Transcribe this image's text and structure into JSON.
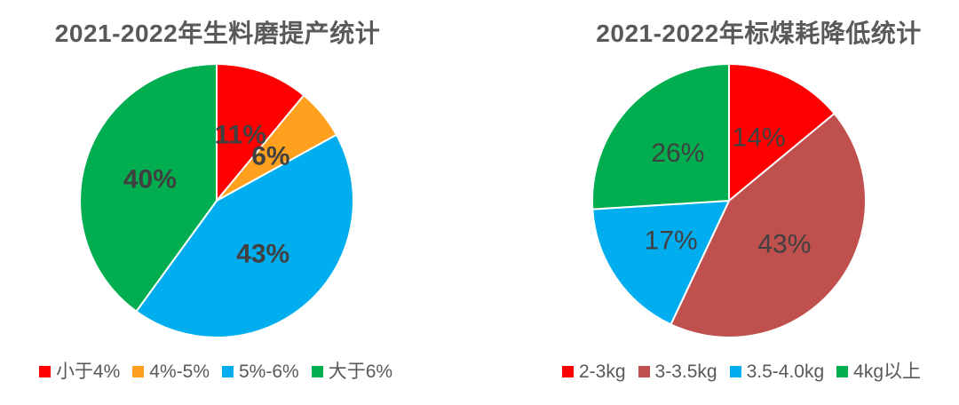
{
  "chart_data": [
    {
      "type": "pie",
      "title": "2021-2022年生料磨提产统计",
      "categories": [
        "小于4%",
        "4%-5%",
        "5%-6%",
        "大于6%"
      ],
      "values": [
        11,
        6,
        43,
        40
      ],
      "data_labels": [
        "11%",
        "6%",
        "43%",
        "40%"
      ],
      "colors": [
        "#FF0000",
        "#FFA01E",
        "#00AEEF",
        "#00AE50"
      ],
      "start_angle_deg": 0,
      "direction": "clockwise",
      "legend_position": "bottom",
      "label_color": "#404040",
      "title_color": "#595959"
    },
    {
      "type": "pie",
      "title": "2021-2022年标煤耗降低统计",
      "categories": [
        "2-3kg",
        "3-3.5kg",
        "3.5-4.0kg",
        "4kg以上"
      ],
      "values": [
        14,
        43,
        17,
        26
      ],
      "data_labels": [
        "14%",
        "43%",
        "17%",
        "26%"
      ],
      "colors": [
        "#FF0000",
        "#C0504D",
        "#00AEEF",
        "#00AE50"
      ],
      "start_angle_deg": 0,
      "direction": "clockwise",
      "legend_position": "bottom",
      "label_color": "#404040",
      "title_color": "#595959"
    }
  ]
}
